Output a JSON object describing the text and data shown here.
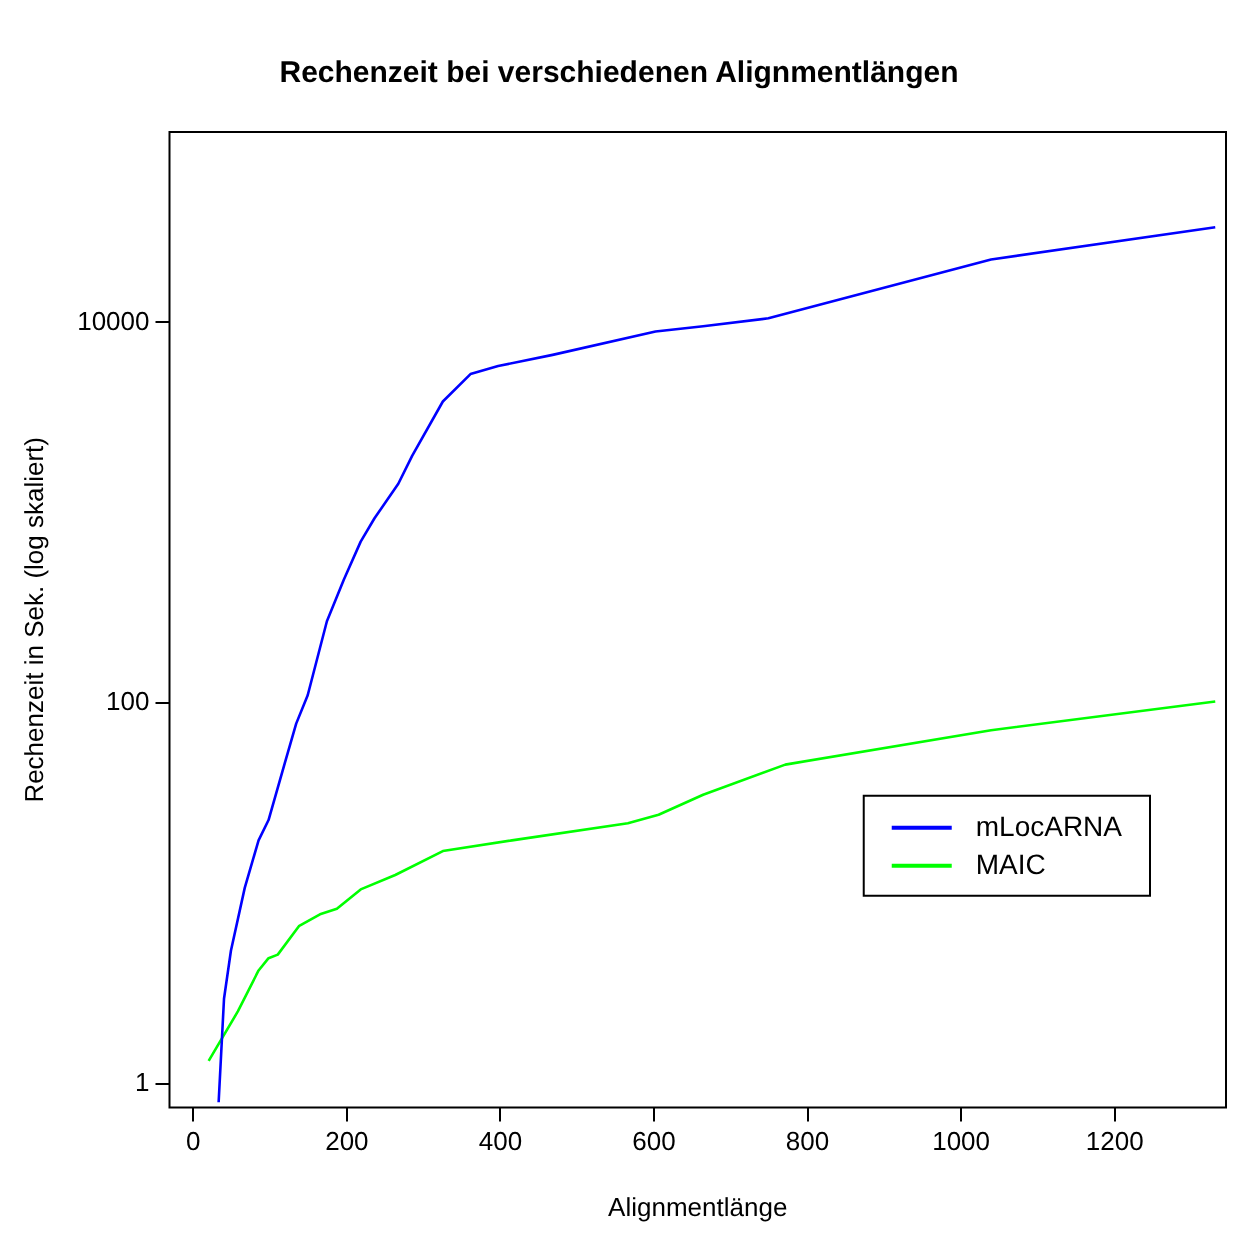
{
  "chart_data": {
    "type": "line",
    "title": "Rechenzeit bei verschiedenen Alignmentlängen",
    "xlabel": "Alignmentlänge",
    "ylabel": "Rechenzeit in Sek. (log skaliert)",
    "log": "y",
    "xlim": [
      -31,
      1345
    ],
    "ylim": [
      0.75,
      100000
    ],
    "xticks": [
      0,
      200,
      400,
      600,
      800,
      1000,
      1200
    ],
    "yticks": [
      1,
      100,
      10000
    ],
    "grid": false,
    "legend": "right",
    "marker": "none",
    "line_style": "solid",
    "series": [
      {
        "name": "mLocARNA",
        "color": "#0000ff",
        "x": [
          33,
          40,
          49,
          67,
          85,
          98,
          116,
          134,
          149,
          174,
          196,
          218,
          236,
          267,
          285,
          325,
          361,
          397,
          468,
          602,
          664,
          749,
          1039,
          1331
        ],
        "values": [
          0.8,
          2.8,
          5,
          10.7,
          19,
          24.3,
          43.7,
          78,
          110,
          269,
          445,
          705,
          935,
          1420,
          1990,
          3840,
          5350,
          5900,
          6750,
          8950,
          9550,
          10500,
          21400,
          31600
        ]
      },
      {
        "name": "MAIC",
        "color": "#00ff00",
        "x": [
          20,
          58,
          85,
          98,
          110,
          138,
          165,
          187,
          218,
          263,
          325,
          415,
          566,
          606,
          664,
          771,
          1039,
          1331
        ],
        "values": [
          1.32,
          2.4,
          3.94,
          4.57,
          4.77,
          6.76,
          7.77,
          8.3,
          10.5,
          12.5,
          16.7,
          19,
          23.4,
          25.9,
          33,
          47.5,
          72,
          102
        ]
      }
    ]
  }
}
